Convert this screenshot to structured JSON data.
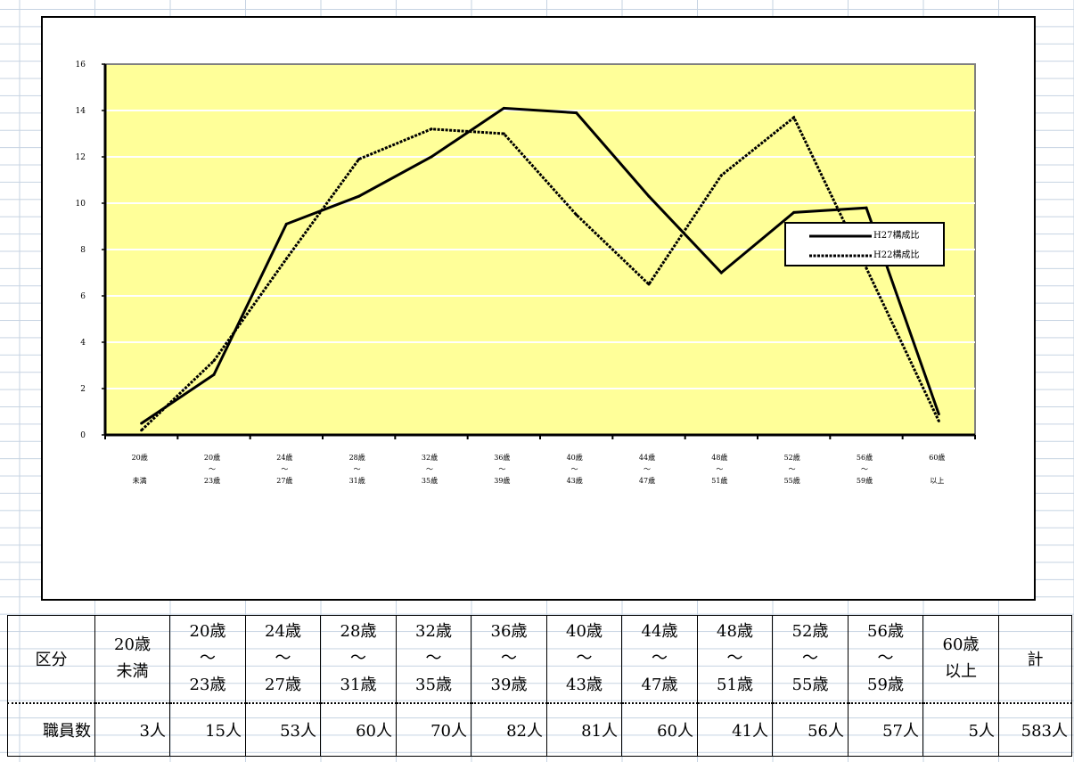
{
  "chart_data": {
    "type": "line",
    "title": "",
    "xlabel": "",
    "ylabel": "",
    "ylim": [
      0,
      16
    ],
    "yticks": [
      0,
      2,
      4,
      6,
      8,
      10,
      12,
      14,
      16
    ],
    "grid": true,
    "legend": "right",
    "categories": [
      [
        "20歳",
        "",
        "未満"
      ],
      [
        "20歳",
        "～",
        "23歳"
      ],
      [
        "24歳",
        "～",
        "27歳"
      ],
      [
        "28歳",
        "～",
        "31歳"
      ],
      [
        "32歳",
        "～",
        "35歳"
      ],
      [
        "36歳",
        "～",
        "39歳"
      ],
      [
        "40歳",
        "～",
        "43歳"
      ],
      [
        "44歳",
        "～",
        "47歳"
      ],
      [
        "48歳",
        "～",
        "51歳"
      ],
      [
        "52歳",
        "～",
        "55歳"
      ],
      [
        "56歳",
        "～",
        "59歳"
      ],
      [
        "60歳",
        "",
        "以上"
      ]
    ],
    "series": [
      {
        "name": "H27構成比",
        "style": "solid",
        "values": [
          0.5,
          2.6,
          9.1,
          10.3,
          12.0,
          14.1,
          13.9,
          10.3,
          7.0,
          9.6,
          9.8,
          0.9
        ]
      },
      {
        "name": "H22構成比",
        "style": "dotted",
        "values": [
          0.2,
          3.2,
          7.6,
          11.9,
          13.2,
          13.0,
          9.5,
          6.5,
          11.2,
          13.7,
          7.2,
          0.6
        ]
      }
    ],
    "colors": {
      "plot_background": "#ffff99",
      "line": "#000000",
      "gridline": "#ffffff"
    }
  },
  "table": {
    "header_label": "区分",
    "categories": [
      [
        "20歳",
        "",
        "未満"
      ],
      [
        "20歳",
        "～",
        "23歳"
      ],
      [
        "24歳",
        "～",
        "27歳"
      ],
      [
        "28歳",
        "～",
        "31歳"
      ],
      [
        "32歳",
        "～",
        "35歳"
      ],
      [
        "36歳",
        "～",
        "39歳"
      ],
      [
        "40歳",
        "～",
        "43歳"
      ],
      [
        "44歳",
        "～",
        "47歳"
      ],
      [
        "48歳",
        "～",
        "51歳"
      ],
      [
        "52歳",
        "～",
        "55歳"
      ],
      [
        "56歳",
        "～",
        "59歳"
      ],
      [
        "60歳",
        "",
        "以上"
      ]
    ],
    "total_label": "計",
    "row_label": "職員数",
    "values": [
      "3人",
      "15人",
      "53人",
      "60人",
      "70人",
      "82人",
      "81人",
      "60人",
      "41人",
      "56人",
      "57人",
      "5人"
    ],
    "total": "583人"
  }
}
